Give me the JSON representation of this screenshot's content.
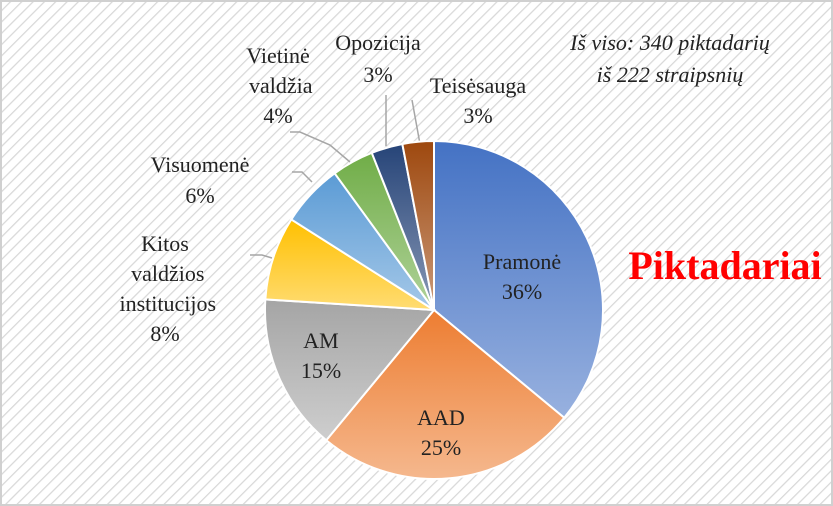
{
  "chart_data": {
    "type": "pie",
    "title": "Piktadariai",
    "annotation": [
      "Iš viso: 340 piktadarių",
      "iš 222 straipsnių"
    ],
    "categories": [
      "Pramonė",
      "AAD",
      "AM",
      "Kitos valdžios institucijos",
      "Visuomenė",
      "Vietinė valdžia",
      "Opozicija",
      "Teisėsauga"
    ],
    "values": [
      36,
      25,
      15,
      8,
      6,
      4,
      3,
      3
    ],
    "value_labels": [
      "36%",
      "25%",
      "15%",
      "8%",
      "6%",
      "4%",
      "3%",
      "3%"
    ],
    "colors": [
      "#4472c4",
      "#ed7d31",
      "#a5a5a5",
      "#ffc000",
      "#5b9bd5",
      "#70ad47",
      "#264478",
      "#9e480e"
    ]
  }
}
